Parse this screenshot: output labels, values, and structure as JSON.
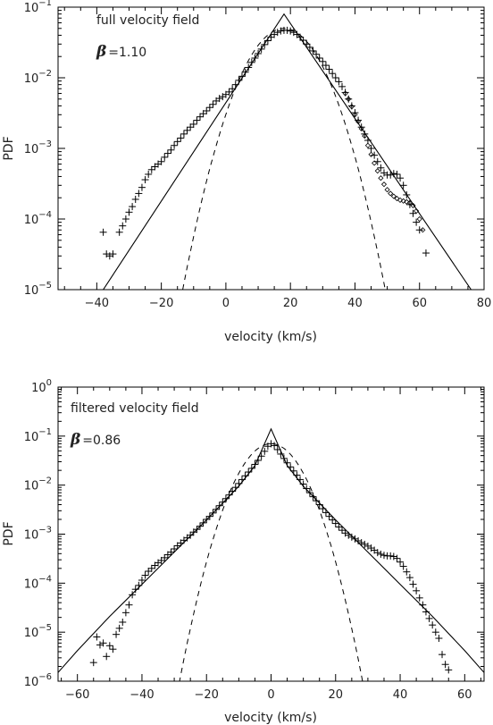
{
  "chart_data": [
    {
      "type": "line",
      "title": "",
      "annotation": "full velocity field",
      "beta_symbol": "β",
      "beta_value": "=1.10",
      "xlabel": "velocity (km/s)",
      "ylabel": "PDF",
      "xlim": [
        -52,
        80
      ],
      "ylim_exp": [
        -5,
        -1
      ],
      "ylog": true,
      "x_ticks": [
        "-40",
        "-20",
        "0",
        "20",
        "40",
        "60",
        "80"
      ],
      "y_ticks": [
        {
          "base": "10",
          "exp": "-5"
        },
        {
          "base": "10",
          "exp": "-4"
        },
        {
          "base": "10",
          "exp": "-3"
        },
        {
          "base": "10",
          "exp": "-2"
        },
        {
          "base": "10",
          "exp": "-1"
        }
      ],
      "peak": {
        "x": 18,
        "y": 0.08
      },
      "exp_fit": {
        "beta": 1.1,
        "left": [
          [
            -38,
            1e-05
          ],
          [
            18,
            0.08
          ]
        ],
        "right": [
          [
            18,
            0.08
          ],
          [
            76,
            1e-05
          ]
        ]
      },
      "gaussian_fit": {
        "mu": 18,
        "sigma": 7.6,
        "amp": 0.05
      },
      "series_plus": [
        [
          -38,
          6.5e-05
        ],
        [
          -37,
          3.2e-05
        ],
        [
          -36,
          3e-05
        ],
        [
          -35,
          3.2e-05
        ],
        [
          -33,
          6.5e-05
        ],
        [
          -32,
          8e-05
        ],
        [
          -31,
          0.0001
        ],
        [
          -30,
          0.000125
        ],
        [
          -29,
          0.00015
        ],
        [
          -28,
          0.00019
        ],
        [
          -27,
          0.00023
        ],
        [
          -26,
          0.00028
        ],
        [
          -25,
          0.00036
        ],
        [
          -24,
          0.00043
        ],
        [
          -23,
          0.0005
        ],
        [
          -22,
          0.00055
        ],
        [
          -21,
          0.0006
        ],
        [
          -20,
          0.00065
        ],
        [
          -19,
          0.00075
        ],
        [
          -18,
          0.00085
        ],
        [
          -17,
          0.00095
        ],
        [
          -16,
          0.0011
        ],
        [
          -15,
          0.00125
        ],
        [
          -14,
          0.0014
        ],
        [
          -13,
          0.0016
        ],
        [
          -12,
          0.0018
        ],
        [
          -11,
          0.002
        ],
        [
          -10,
          0.0022
        ],
        [
          -9,
          0.0025
        ],
        [
          -8,
          0.0028
        ],
        [
          -7,
          0.0031
        ],
        [
          -6,
          0.0034
        ],
        [
          -5,
          0.0038
        ],
        [
          -4,
          0.0042
        ],
        [
          -3,
          0.0047
        ],
        [
          -2,
          0.0051
        ],
        [
          -1,
          0.0054
        ],
        [
          0,
          0.0058
        ],
        [
          1,
          0.0063
        ],
        [
          2,
          0.007
        ],
        [
          3,
          0.008
        ],
        [
          4,
          0.0092
        ],
        [
          5,
          0.0105
        ],
        [
          6,
          0.012
        ],
        [
          7,
          0.014
        ],
        [
          8,
          0.0165
        ],
        [
          9,
          0.019
        ],
        [
          10,
          0.022
        ],
        [
          11,
          0.0255
        ],
        [
          12,
          0.0295
        ],
        [
          13,
          0.0335
        ],
        [
          14,
          0.0375
        ],
        [
          15,
          0.041
        ],
        [
          16,
          0.044
        ],
        [
          17,
          0.046
        ],
        [
          18,
          0.047
        ],
        [
          19,
          0.047
        ],
        [
          20,
          0.046
        ],
        [
          21,
          0.044
        ],
        [
          22,
          0.041
        ],
        [
          23,
          0.0375
        ],
        [
          24,
          0.034
        ],
        [
          25,
          0.03
        ],
        [
          26,
          0.027
        ],
        [
          27,
          0.024
        ],
        [
          28,
          0.0215
        ],
        [
          29,
          0.019
        ],
        [
          30,
          0.017
        ],
        [
          31,
          0.015
        ],
        [
          32,
          0.0132
        ],
        [
          33,
          0.0115
        ],
        [
          34,
          0.01
        ],
        [
          35,
          0.0088
        ],
        [
          36,
          0.0075
        ],
        [
          37,
          0.0062
        ],
        [
          38,
          0.005
        ],
        [
          39,
          0.004
        ],
        [
          40,
          0.0032
        ],
        [
          41,
          0.0025
        ],
        [
          42,
          0.002
        ],
        [
          43,
          0.0016
        ],
        [
          44,
          0.0013
        ],
        [
          45,
          0.001
        ],
        [
          46,
          0.0008
        ],
        [
          47,
          0.00065
        ],
        [
          48,
          0.00053
        ],
        [
          49,
          0.00045
        ],
        [
          50,
          0.00042
        ],
        [
          51,
          0.00042
        ],
        [
          52,
          0.00044
        ],
        [
          53,
          0.00043
        ],
        [
          54,
          0.00038
        ],
        [
          55,
          0.0003
        ],
        [
          56,
          0.00022
        ],
        [
          57,
          0.00016
        ],
        [
          58,
          0.00012
        ],
        [
          59,
          9e-05
        ],
        [
          60,
          7e-05
        ],
        [
          62,
          3.3e-05
        ]
      ],
      "series_diamond": [
        [
          37,
          0.006
        ],
        [
          38,
          0.005
        ],
        [
          39,
          0.0039
        ],
        [
          40,
          0.003
        ],
        [
          41,
          0.0024
        ],
        [
          42,
          0.0019
        ],
        [
          43,
          0.0015
        ],
        [
          44,
          0.0011
        ],
        [
          45,
          0.00082
        ],
        [
          46,
          0.00062
        ],
        [
          47,
          0.00048
        ],
        [
          48,
          0.00038
        ],
        [
          49,
          0.00031
        ],
        [
          50,
          0.00026
        ],
        [
          51,
          0.00023
        ],
        [
          52,
          0.00021
        ],
        [
          53,
          0.000195
        ],
        [
          54,
          0.000185
        ],
        [
          55,
          0.00018
        ],
        [
          56,
          0.000175
        ],
        [
          57,
          0.00017
        ],
        [
          58,
          0.000155
        ],
        [
          59,
          0.00013
        ],
        [
          60,
          0.0001
        ],
        [
          61,
          7e-05
        ]
      ]
    },
    {
      "type": "line",
      "title": "",
      "annotation": "filtered velocity field",
      "beta_symbol": "β",
      "beta_value": "=0.86",
      "xlabel": "velocity (km/s)",
      "ylabel": "PDF",
      "xlim": [
        -66,
        66
      ],
      "ylim_exp": [
        -6,
        0
      ],
      "ylog": true,
      "x_ticks": [
        "-60",
        "-40",
        "-20",
        "0",
        "20",
        "40",
        "60"
      ],
      "y_ticks": [
        {
          "base": "10",
          "exp": "-6"
        },
        {
          "base": "10",
          "exp": "-5"
        },
        {
          "base": "10",
          "exp": "-4"
        },
        {
          "base": "10",
          "exp": "-3"
        },
        {
          "base": "10",
          "exp": "-2"
        },
        {
          "base": "10",
          "exp": "-1"
        },
        {
          "base": "10",
          "exp": "0"
        }
      ],
      "exp_fit": {
        "beta": 0.86,
        "points": [
          [
            -66,
            1.5e-06
          ],
          [
            -60,
            4.2e-06
          ],
          [
            -50,
            2.1e-05
          ],
          [
            -40,
            9.5e-05
          ],
          [
            -30,
            0.00043
          ],
          [
            -20,
            0.00195
          ],
          [
            -10,
            0.0095
          ],
          [
            -5,
            0.025
          ],
          [
            0,
            0.14
          ],
          [
            5,
            0.025
          ],
          [
            10,
            0.0095
          ],
          [
            20,
            0.00195
          ],
          [
            30,
            0.00043
          ],
          [
            40,
            9.5e-05
          ],
          [
            50,
            2.1e-05
          ],
          [
            60,
            4.2e-06
          ],
          [
            66,
            1.5e-06
          ]
        ]
      },
      "gaussian_fit": {
        "mu": 0,
        "sigma": 6.0,
        "amp": 0.07
      },
      "series_plus": [
        [
          -55,
          2.4e-06
        ],
        [
          -54,
          8e-06
        ],
        [
          -53,
          5.5e-06
        ],
        [
          -52,
          6e-06
        ],
        [
          -51,
          3.2e-06
        ],
        [
          -50,
          5.3e-06
        ],
        [
          -49,
          4.5e-06
        ],
        [
          -48,
          9e-06
        ],
        [
          -47,
          1.2e-05
        ],
        [
          -46,
          1.6e-05
        ],
        [
          -45,
          2.5e-05
        ],
        [
          -44,
          3.6e-05
        ],
        [
          -43,
          5.8e-05
        ],
        [
          -42,
          7.5e-05
        ],
        [
          -41,
          9e-05
        ],
        [
          -40,
          0.000115
        ],
        [
          -39,
          0.000145
        ],
        [
          -38,
          0.000175
        ],
        [
          -37,
          0.0002
        ],
        [
          -36,
          0.00023
        ],
        [
          -35,
          0.00026
        ],
        [
          -34,
          0.00029
        ],
        [
          -33,
          0.00033
        ],
        [
          -32,
          0.00038
        ],
        [
          -31,
          0.00043
        ],
        [
          -30,
          0.0005
        ],
        [
          -29,
          0.00058
        ],
        [
          -28,
          0.00066
        ],
        [
          -27,
          0.00075
        ],
        [
          -26,
          0.00084
        ],
        [
          -25,
          0.00095
        ],
        [
          -24,
          0.0011
        ],
        [
          -23,
          0.00125
        ],
        [
          -22,
          0.00145
        ],
        [
          -21,
          0.0017
        ],
        [
          -20,
          0.002
        ],
        [
          -19,
          0.0023
        ],
        [
          -18,
          0.0027
        ],
        [
          -17,
          0.0032
        ],
        [
          -16,
          0.0038
        ],
        [
          -15,
          0.0045
        ],
        [
          -14,
          0.0053
        ],
        [
          -13,
          0.0063
        ],
        [
          -12,
          0.0075
        ],
        [
          -11,
          0.009
        ],
        [
          -10,
          0.0108
        ],
        [
          -9,
          0.013
        ],
        [
          -8,
          0.0155
        ],
        [
          -7,
          0.0185
        ],
        [
          -6,
          0.022
        ],
        [
          -5,
          0.0265
        ],
        [
          -4,
          0.032
        ],
        [
          -3,
          0.039
        ],
        [
          -2,
          0.049
        ],
        [
          -1,
          0.062
        ],
        [
          0,
          0.07
        ],
        [
          1,
          0.064
        ],
        [
          2,
          0.053
        ],
        [
          3,
          0.043
        ],
        [
          4,
          0.035
        ],
        [
          5,
          0.0285
        ],
        [
          6,
          0.0235
        ],
        [
          7,
          0.0195
        ],
        [
          8,
          0.016
        ],
        [
          9,
          0.013
        ],
        [
          10,
          0.0105
        ],
        [
          11,
          0.0085
        ],
        [
          12,
          0.007
        ],
        [
          13,
          0.0058
        ],
        [
          14,
          0.0048
        ],
        [
          15,
          0.004
        ],
        [
          16,
          0.0033
        ],
        [
          17,
          0.00275
        ],
        [
          18,
          0.0023
        ],
        [
          19,
          0.00195
        ],
        [
          20,
          0.00165
        ],
        [
          21,
          0.0014
        ],
        [
          22,
          0.0012
        ],
        [
          23,
          0.00105
        ],
        [
          24,
          0.00095
        ],
        [
          25,
          0.00087
        ],
        [
          26,
          0.0008
        ],
        [
          27,
          0.00073
        ],
        [
          28,
          0.00067
        ],
        [
          29,
          0.00062
        ],
        [
          30,
          0.00057
        ],
        [
          31,
          0.00052
        ],
        [
          32,
          0.00047
        ],
        [
          33,
          0.00042
        ],
        [
          34,
          0.00039
        ],
        [
          35,
          0.00037
        ],
        [
          36,
          0.00036
        ],
        [
          37,
          0.00036
        ],
        [
          38,
          0.00035
        ],
        [
          39,
          0.00032
        ],
        [
          40,
          0.00027
        ],
        [
          41,
          0.00022
        ],
        [
          42,
          0.00017
        ],
        [
          43,
          0.00013
        ],
        [
          44,
          9.5e-05
        ],
        [
          45,
          7e-05
        ],
        [
          46,
          5e-05
        ],
        [
          47,
          3.6e-05
        ],
        [
          48,
          2.6e-05
        ],
        [
          49,
          1.9e-05
        ],
        [
          50,
          1.4e-05
        ],
        [
          51,
          1e-05
        ],
        [
          52,
          7.5e-06
        ],
        [
          53,
          3.5e-06
        ],
        [
          54,
          2.2e-06
        ],
        [
          55,
          1.7e-06
        ]
      ]
    }
  ]
}
